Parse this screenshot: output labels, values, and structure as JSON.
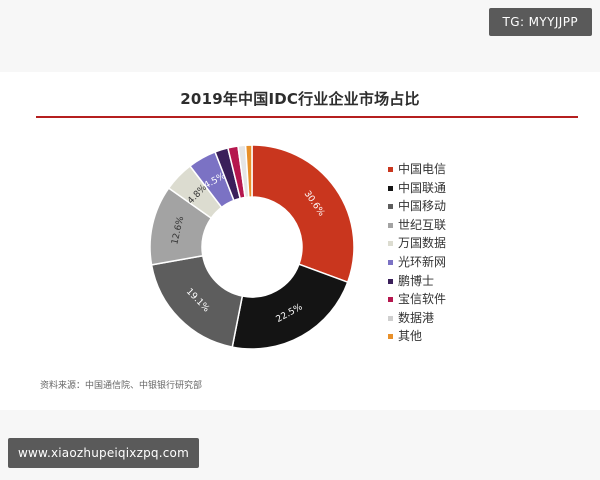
{
  "watermark": {
    "tg_handle": "TG: MYYJJPP",
    "url": "www.xiaozhupeiqixzpq.com"
  },
  "source_note": "资料来源：中国通信院、中银银行研究部",
  "colors": {
    "title_rule": "#b51f1f"
  },
  "chart_data": {
    "type": "pie",
    "title": "2019年中国IDC行业企业市场占比",
    "donut": true,
    "legend_position": "right",
    "series": [
      {
        "name": "中国电信",
        "value": 30.6,
        "label": "30.6%",
        "color": "#c9361e"
      },
      {
        "name": "中国联通",
        "value": 22.5,
        "label": "22.5%",
        "color": "#141414"
      },
      {
        "name": "中国移动",
        "value": 19.1,
        "label": "19.1%",
        "color": "#5d5d5d"
      },
      {
        "name": "世纪互联",
        "value": 12.6,
        "label": "12.6%",
        "color": "#a3a3a3"
      },
      {
        "name": "万国数据",
        "value": 4.8,
        "label": "4.8%",
        "color": "#dcdcd0"
      },
      {
        "name": "光环新网",
        "value": 4.5,
        "label": "4.5%",
        "color": "#7b72c4"
      },
      {
        "name": "鹏博士",
        "value": 2.1,
        "label": "",
        "color": "#3a1f5a"
      },
      {
        "name": "宝信软件",
        "value": 1.6,
        "label": "",
        "color": "#b5174e"
      },
      {
        "name": "数据港",
        "value": 1.2,
        "label": "",
        "color": "#e5e5e5"
      },
      {
        "name": "其他",
        "value": 1.0,
        "label": "",
        "color": "#e8902a"
      }
    ]
  }
}
